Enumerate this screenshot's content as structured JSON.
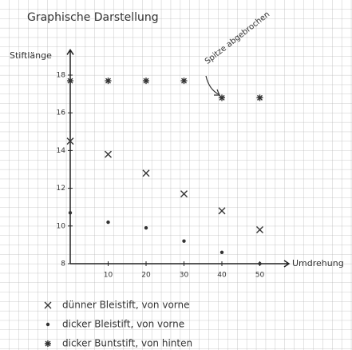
{
  "chart_data": {
    "type": "scatter",
    "title": "Graphische Darstellung",
    "y_label": "Stiftlänge",
    "x_label": "Umdrehung",
    "annotation": "Spitze abgebrochen",
    "xlim": [
      0,
      56
    ],
    "ylim": [
      8,
      19
    ],
    "xticks": [
      10,
      20,
      30,
      40,
      50
    ],
    "yticks": [
      8,
      10,
      12,
      14,
      16,
      18
    ],
    "series": [
      {
        "name": "dünner Bleistift, von vorne",
        "marker": "x",
        "color": "#333333",
        "x": [
          0,
          10,
          20,
          30,
          40,
          50
        ],
        "values": [
          14.5,
          13.8,
          12.8,
          11.7,
          10.8,
          9.8
        ]
      },
      {
        "name": "dicker Bleistift, von vorne",
        "marker": "dot",
        "color": "#333333",
        "x": [
          0,
          10,
          20,
          30,
          40,
          50
        ],
        "values": [
          10.7,
          10.2,
          9.9,
          9.2,
          8.6,
          8.0
        ]
      },
      {
        "name": "dicker Buntstift, von hinten",
        "marker": "star",
        "color": "#333333",
        "x": [
          0,
          10,
          20,
          30,
          40,
          50
        ],
        "values": [
          17.7,
          17.7,
          17.7,
          17.7,
          16.8,
          16.8
        ]
      }
    ]
  }
}
